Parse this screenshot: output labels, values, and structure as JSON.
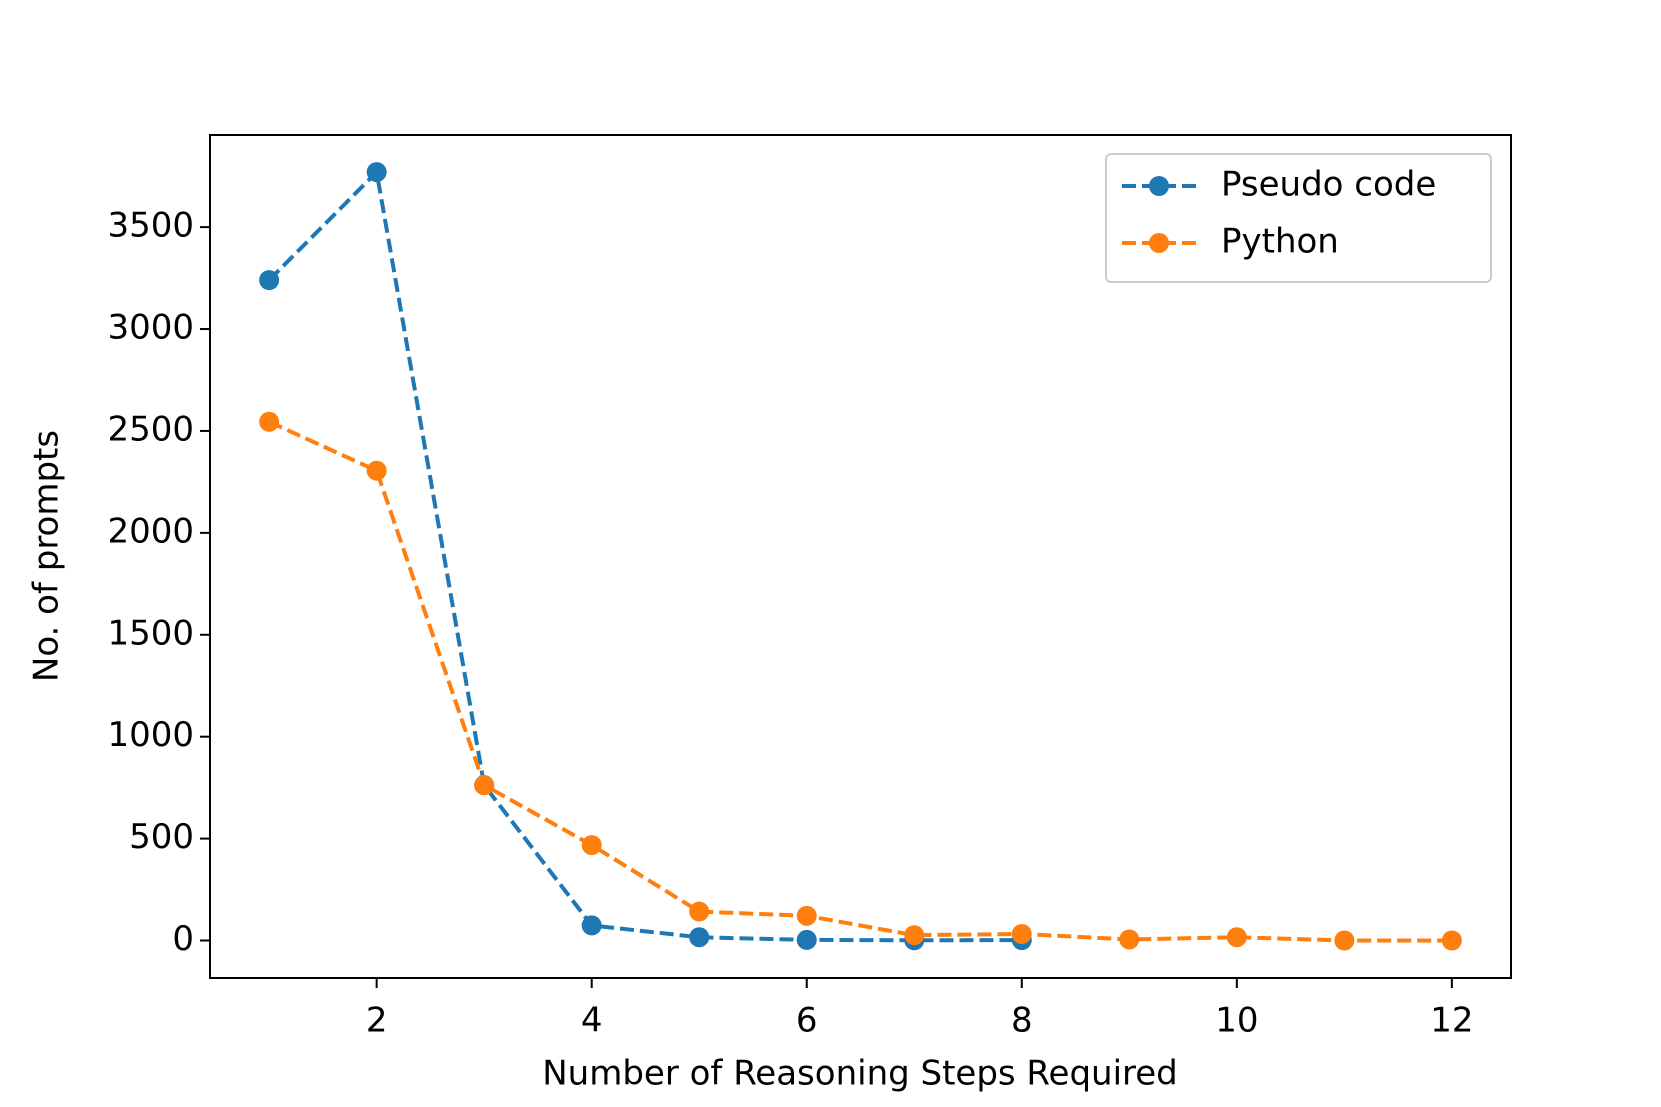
{
  "chart_data": {
    "type": "line",
    "x_label": "Number of Reasoning Steps Required",
    "y_label": "No. of prompts",
    "xlim": [
      0.45,
      12.55
    ],
    "ylim": [
      -184,
      3952
    ],
    "xticks": [
      2,
      4,
      6,
      8,
      10,
      12
    ],
    "yticks": [
      0,
      500,
      1000,
      1500,
      2000,
      2500,
      3000,
      3500
    ],
    "legend": "upper right",
    "series": [
      {
        "name": "Pseudo code",
        "color": "#1f77b4",
        "x": [
          1,
          2,
          3,
          4,
          5,
          6,
          7,
          8
        ],
        "values": [
          3240,
          3770,
          762,
          74,
          16,
          3,
          1,
          2
        ]
      },
      {
        "name": "Python",
        "color": "#ff7f0e",
        "x": [
          1,
          2,
          3,
          4,
          5,
          6,
          7,
          8,
          9,
          10,
          11,
          12
        ],
        "values": [
          2545,
          2305,
          762,
          468,
          142,
          121,
          26,
          32,
          5,
          16,
          0,
          0
        ]
      }
    ]
  }
}
